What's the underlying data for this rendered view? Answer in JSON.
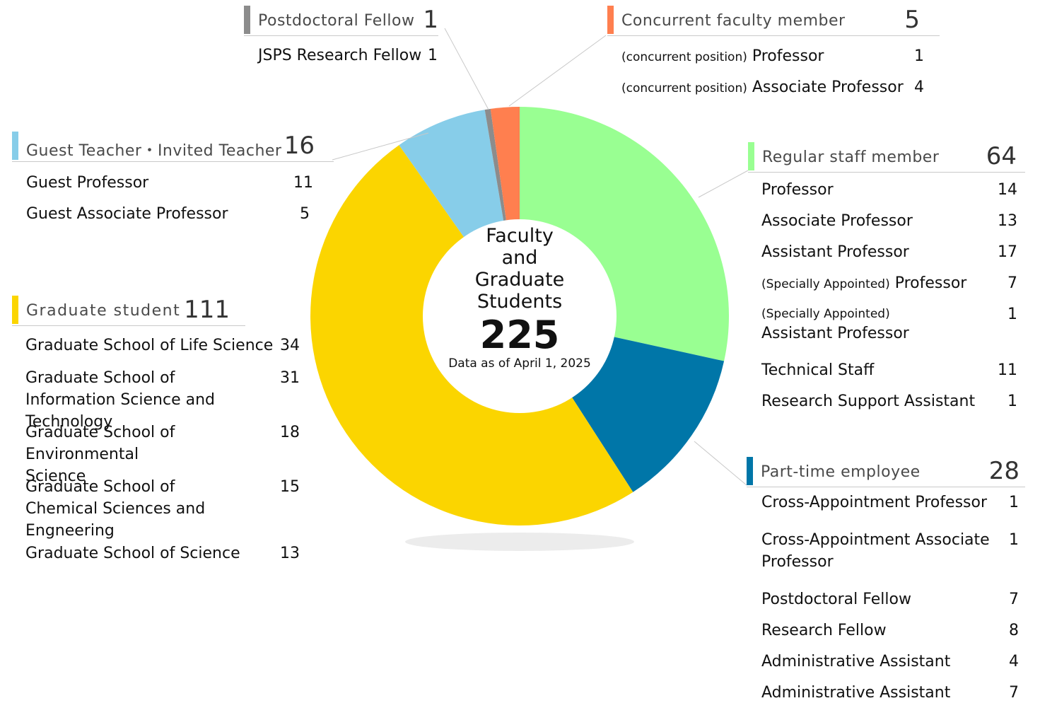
{
  "chart_data": {
    "type": "pie",
    "title": "Faculty and Graduate Students",
    "center": {
      "title_lines": [
        "Faculty",
        "and",
        "Graduate",
        "Students"
      ],
      "total": "225",
      "note": "Data as of April 1, 2025"
    },
    "slices": [
      {
        "key": "regular",
        "label": "Regular staff member",
        "value": 64,
        "color": "#99ff92"
      },
      {
        "key": "parttime",
        "label": "Part-time employee",
        "value": 28,
        "color": "#0076a8"
      },
      {
        "key": "graduate",
        "label": "Graduate student",
        "value": 111,
        "color": "#fbd500"
      },
      {
        "key": "guest",
        "label": "Guest Teacher・Invited Teacher",
        "value": 16,
        "color": "#87cde9"
      },
      {
        "key": "postdoc",
        "label": "Postdoctoral Fellow",
        "value": 1,
        "color": "#8c8c8c"
      },
      {
        "key": "concurrent",
        "label": "Concurrent faculty member",
        "value": 5,
        "color": "#ff7f4f"
      }
    ]
  },
  "groups": {
    "postdoc": {
      "label": "Postdoctoral Fellow",
      "total": "1",
      "color": "#8c8c8c",
      "items": [
        {
          "label": "JSPS Research Fellow",
          "value": "1"
        }
      ]
    },
    "concurrent": {
      "label": "Concurrent faculty member",
      "total": "5",
      "color": "#ff7f4f",
      "items": [
        {
          "prefix": "(concurrent position)",
          "label": "Professor",
          "value": "1"
        },
        {
          "prefix": "(concurrent position)",
          "label": "Associate Professor",
          "value": "4"
        }
      ]
    },
    "guest": {
      "label": "Guest Teacher・Invited Teacher",
      "total": "16",
      "color": "#87cde9",
      "items": [
        {
          "label": "Guest Professor",
          "value": "11"
        },
        {
          "label": "Guest Associate Professor",
          "value": "5"
        }
      ]
    },
    "graduate": {
      "label": "Graduate student",
      "total": "111",
      "color": "#fbd500",
      "items": [
        {
          "label": "Graduate School of Life Science",
          "value": "34"
        },
        {
          "label": "Graduate School of Information Science and Technology",
          "value": "31"
        },
        {
          "label": "Graduate School of Environmental Science",
          "value": "18"
        },
        {
          "label": "Graduate School of Chemical Sciences and Engneering",
          "value": "15"
        },
        {
          "label": "Graduate School of Science",
          "value": "13"
        }
      ]
    },
    "regular": {
      "label": "Regular staff member",
      "total": "64",
      "color": "#99ff92",
      "items": [
        {
          "label": "Professor",
          "value": "14"
        },
        {
          "label": "Associate Professor",
          "value": "13"
        },
        {
          "label": "Assistant Professor",
          "value": "17"
        },
        {
          "prefix": "(Specially Appointed)",
          "label": "Professor",
          "value": "7"
        },
        {
          "prefix": "(Specially Appointed)",
          "label": "Assistant Professor",
          "value": "1"
        },
        {
          "label": "Technical Staff",
          "value": "11"
        },
        {
          "label": "Research Support Assistant",
          "value": "1"
        }
      ]
    },
    "parttime": {
      "label": "Part-time employee",
      "total": "28",
      "color": "#0076a8",
      "items": [
        {
          "label": "Cross-Appointment Professor",
          "value": "1"
        },
        {
          "label": "Cross-Appointment Associate Professor",
          "value": "1"
        },
        {
          "label": "Postdoctoral Fellow",
          "value": "7"
        },
        {
          "label": "Research Fellow",
          "value": "8"
        },
        {
          "label": "Administrative Assistant",
          "value": "4"
        },
        {
          "label": "Administrative Assistant",
          "value": "7"
        }
      ]
    }
  }
}
